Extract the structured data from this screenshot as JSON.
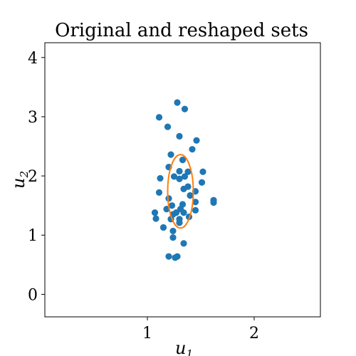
{
  "chart_data": {
    "type": "scatter",
    "title": "Original and reshaped sets",
    "xlabel": {
      "base": "u",
      "sub": "1"
    },
    "ylabel": {
      "base": "u",
      "sub": "2"
    },
    "xlim": [
      0.04,
      2.62
    ],
    "ylim": [
      -0.38,
      4.25
    ],
    "xticks": [
      {
        "value": 1,
        "label": "1"
      },
      {
        "value": 2,
        "label": "2"
      }
    ],
    "yticks": [
      {
        "value": 0,
        "label": "0"
      },
      {
        "value": 1,
        "label": "1"
      },
      {
        "value": 2,
        "label": "2"
      },
      {
        "value": 3,
        "label": "3"
      },
      {
        "value": 4,
        "label": "4"
      }
    ],
    "grid": false,
    "series": [
      {
        "kind": "points",
        "color": "#1f77b4",
        "points": [
          [
            1.28,
            3.24
          ],
          [
            1.35,
            3.13
          ],
          [
            1.11,
            2.99
          ],
          [
            1.19,
            2.83
          ],
          [
            1.3,
            2.67
          ],
          [
            1.46,
            2.6
          ],
          [
            1.42,
            2.45
          ],
          [
            1.22,
            2.36
          ],
          [
            1.33,
            2.27
          ],
          [
            1.2,
            2.15
          ],
          [
            1.3,
            2.08
          ],
          [
            1.38,
            2.07
          ],
          [
            1.52,
            2.07
          ],
          [
            1.25,
            1.99
          ],
          [
            1.35,
            1.99
          ],
          [
            1.12,
            1.96
          ],
          [
            1.3,
            1.95
          ],
          [
            1.51,
            1.89
          ],
          [
            1.38,
            1.82
          ],
          [
            1.34,
            1.78
          ],
          [
            1.45,
            1.74
          ],
          [
            1.11,
            1.72
          ],
          [
            1.4,
            1.67
          ],
          [
            1.2,
            1.62
          ],
          [
            1.62,
            1.59
          ],
          [
            1.45,
            1.56
          ],
          [
            1.62,
            1.55
          ],
          [
            1.33,
            1.52
          ],
          [
            1.23,
            1.5
          ],
          [
            1.18,
            1.44
          ],
          [
            1.31,
            1.44
          ],
          [
            1.45,
            1.42
          ],
          [
            1.07,
            1.38
          ],
          [
            1.27,
            1.38
          ],
          [
            1.34,
            1.38
          ],
          [
            1.24,
            1.35
          ],
          [
            1.39,
            1.31
          ],
          [
            1.08,
            1.28
          ],
          [
            1.22,
            1.27
          ],
          [
            1.3,
            1.27
          ],
          [
            1.3,
            1.21
          ],
          [
            1.15,
            1.13
          ],
          [
            1.24,
            1.07
          ],
          [
            1.24,
            0.96
          ],
          [
            1.34,
            0.86
          ],
          [
            1.2,
            0.64
          ],
          [
            1.28,
            0.64
          ],
          [
            1.26,
            0.62
          ]
        ]
      },
      {
        "kind": "ellipse",
        "color": "#ff7f0e",
        "center": [
          1.31,
          1.74
        ],
        "semi_axes": [
          0.12,
          0.62
        ]
      }
    ]
  }
}
